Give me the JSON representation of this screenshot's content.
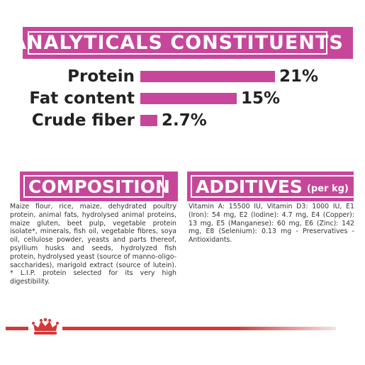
{
  "banner_title": "ANALYTICALS CONSTITUENTS",
  "constituents": [
    {
      "label": "Protein",
      "value": "21%",
      "fraction": 0.21
    },
    {
      "label": "Fat content",
      "value": "15%",
      "fraction": 0.15
    },
    {
      "label": "Crude fiber",
      "value": "2.7%",
      "fraction": 0.027
    }
  ],
  "composition": {
    "title": "COMPOSITION",
    "text": "Maize flour, rice, maize, dehydrated poultry protein, animal fats, hydrolysed animal proteins, maize gluten, beet pulp, vegetable protein isolate*, minerals, fish oil, vegetable fibres, soya oil, cellulose powder, yeasts and parts thereof, psyllium husks and seeds, hydrolyzed fish protein, hydrolysed yeast (source of manno-oligo-saccharides), marigold extract (source of lutein). * L.I.P. protein selected for its very high digestibility."
  },
  "additives": {
    "title": "ADDITIVES",
    "subtitle": "(per kg)",
    "text": "Vitamin A: 15500 IU, Vitamin D3: 1000 IU, E1 (Iron): 54 mg, E2 (Iodine): 4.7 mg, E4 (Copper): 13 mg, E5 (Manganese): 60 mg, E6 (Zinc): 142 mg, E8 (Selenium): 0.13 mg - Preservatives - Antioxidants."
  },
  "colors": {
    "accent": "#c6479a",
    "footer_line": "#d4393a"
  },
  "icons": {
    "footer": "crown-logo"
  }
}
